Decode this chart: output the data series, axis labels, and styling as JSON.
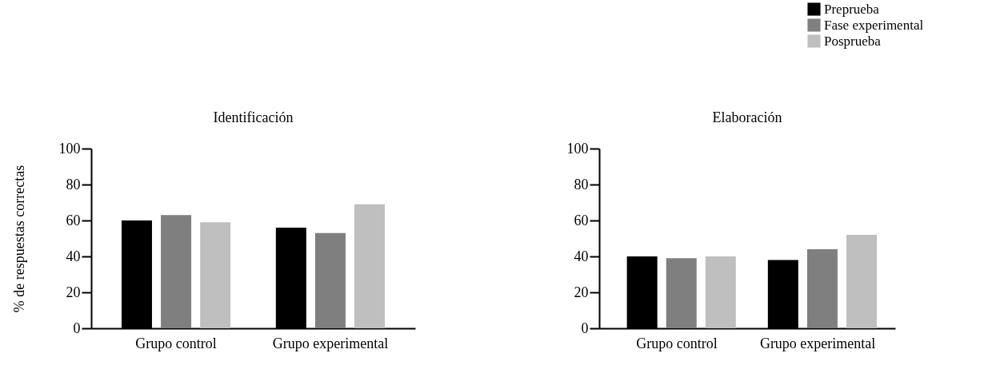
{
  "chart_data": [
    {
      "type": "bar",
      "title": "Identificación",
      "ylabel": "% de respuestas correctas",
      "categories": [
        "Grupo control",
        "Grupo experimental"
      ],
      "ylim": [
        0,
        100
      ],
      "yticks": [
        0,
        20,
        40,
        60,
        80,
        100
      ],
      "grid": false,
      "legend": "top right",
      "series": [
        {
          "name": "Preprueba",
          "color": "#000000",
          "values": [
            60,
            56
          ]
        },
        {
          "name": "Fase experimental",
          "color": "#7f7f7f",
          "values": [
            63,
            53
          ]
        },
        {
          "name": "Posprueba",
          "color": "#bfbfbf",
          "values": [
            59,
            69
          ]
        }
      ]
    },
    {
      "type": "bar",
      "title": "Elaboración",
      "categories": [
        "Grupo control",
        "Grupo experimental"
      ],
      "ylim": [
        0,
        100
      ],
      "yticks": [
        0,
        20,
        40,
        60,
        80,
        100
      ],
      "grid": false,
      "legend": false,
      "series": [
        {
          "color": "#000000",
          "values": [
            40,
            38
          ]
        },
        {
          "color": "#7f7f7f",
          "values": [
            39,
            44
          ]
        },
        {
          "color": "#bfbfbf",
          "values": [
            40,
            52
          ]
        }
      ]
    }
  ]
}
